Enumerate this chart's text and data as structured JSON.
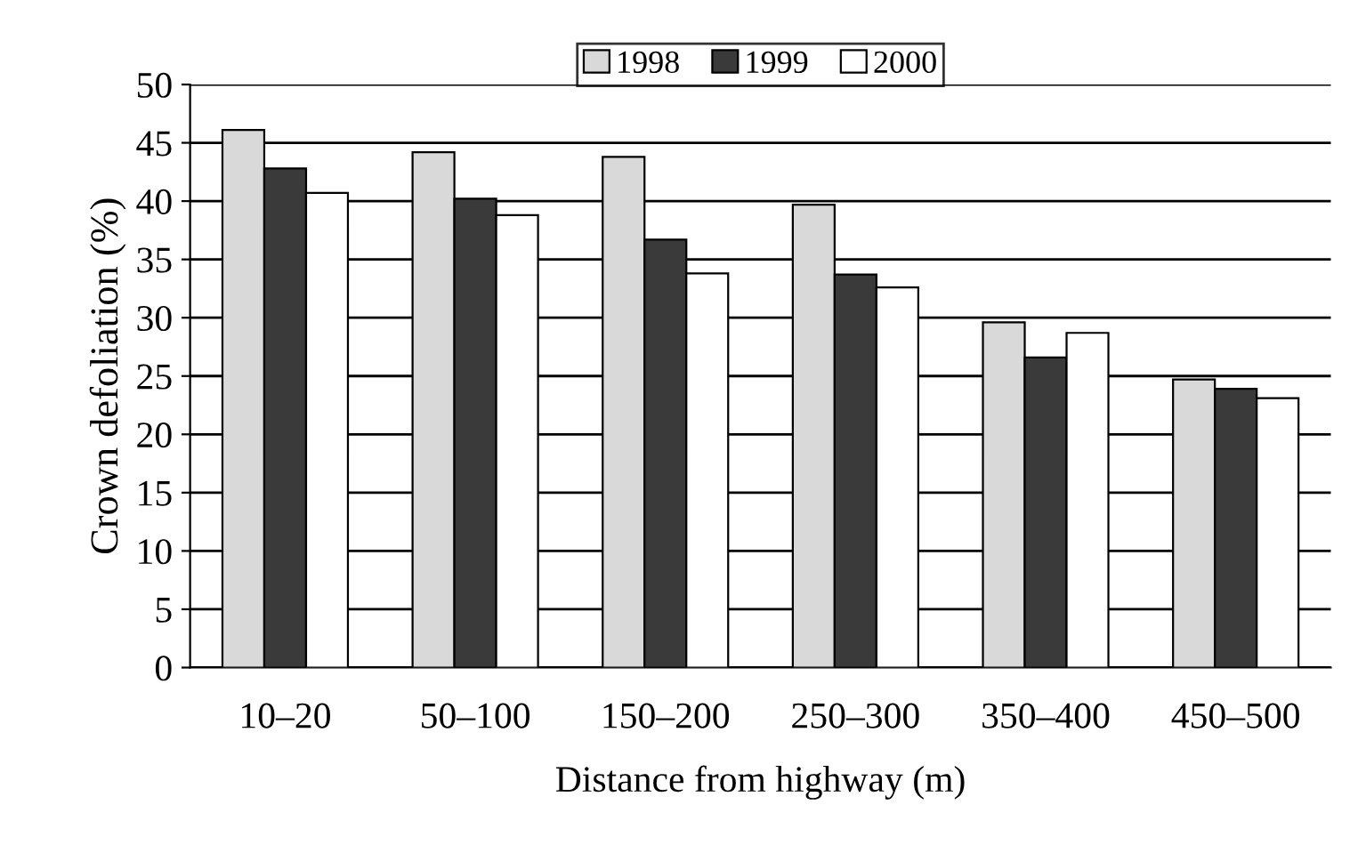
{
  "chart_data": {
    "type": "bar",
    "xlabel": "Distance from highway (m)",
    "ylabel": "Crown defoliation (%)",
    "categories": [
      "10–20",
      "50–100",
      "150–200",
      "250–300",
      "350–400",
      "450–500"
    ],
    "series": [
      {
        "name": "1998",
        "color": "#d9d9d9",
        "values": [
          46.1,
          44.2,
          43.8,
          39.7,
          29.6,
          24.7
        ]
      },
      {
        "name": "1999",
        "color": "#3a3a3a",
        "values": [
          42.8,
          40.2,
          36.7,
          33.7,
          26.6,
          23.9
        ]
      },
      {
        "name": "2000",
        "color": "#ffffff",
        "values": [
          40.7,
          38.8,
          33.8,
          32.6,
          28.7,
          23.1
        ]
      }
    ],
    "ylim": [
      0,
      50
    ],
    "yticks": [
      0,
      5,
      10,
      15,
      20,
      25,
      30,
      35,
      40,
      45,
      50
    ],
    "grid": "y",
    "legend": "top"
  }
}
